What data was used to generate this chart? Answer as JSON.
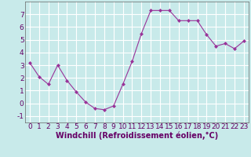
{
  "x": [
    0,
    1,
    2,
    3,
    4,
    5,
    6,
    7,
    8,
    9,
    10,
    11,
    12,
    13,
    14,
    15,
    16,
    17,
    18,
    19,
    20,
    21,
    22,
    23
  ],
  "y": [
    3.2,
    2.1,
    1.5,
    3.0,
    1.8,
    0.9,
    0.1,
    -0.4,
    -0.5,
    -0.2,
    1.5,
    3.3,
    5.5,
    7.3,
    7.3,
    7.3,
    6.5,
    6.5,
    6.5,
    5.4,
    4.5,
    4.7,
    4.3,
    4.9
  ],
  "line_color": "#993399",
  "marker": "D",
  "marker_size": 2,
  "bg_color": "#c8eaea",
  "grid_color": "#ffffff",
  "xlabel": "Windchill (Refroidissement éolien,°C)",
  "xlabel_fontsize": 7,
  "tick_fontsize": 6.5,
  "ylim": [
    -1.5,
    8.0
  ],
  "xlim": [
    -0.5,
    23.5
  ],
  "yticks": [
    -1,
    0,
    1,
    2,
    3,
    4,
    5,
    6,
    7
  ],
  "xticks": [
    0,
    1,
    2,
    3,
    4,
    5,
    6,
    7,
    8,
    9,
    10,
    11,
    12,
    13,
    14,
    15,
    16,
    17,
    18,
    19,
    20,
    21,
    22,
    23
  ]
}
